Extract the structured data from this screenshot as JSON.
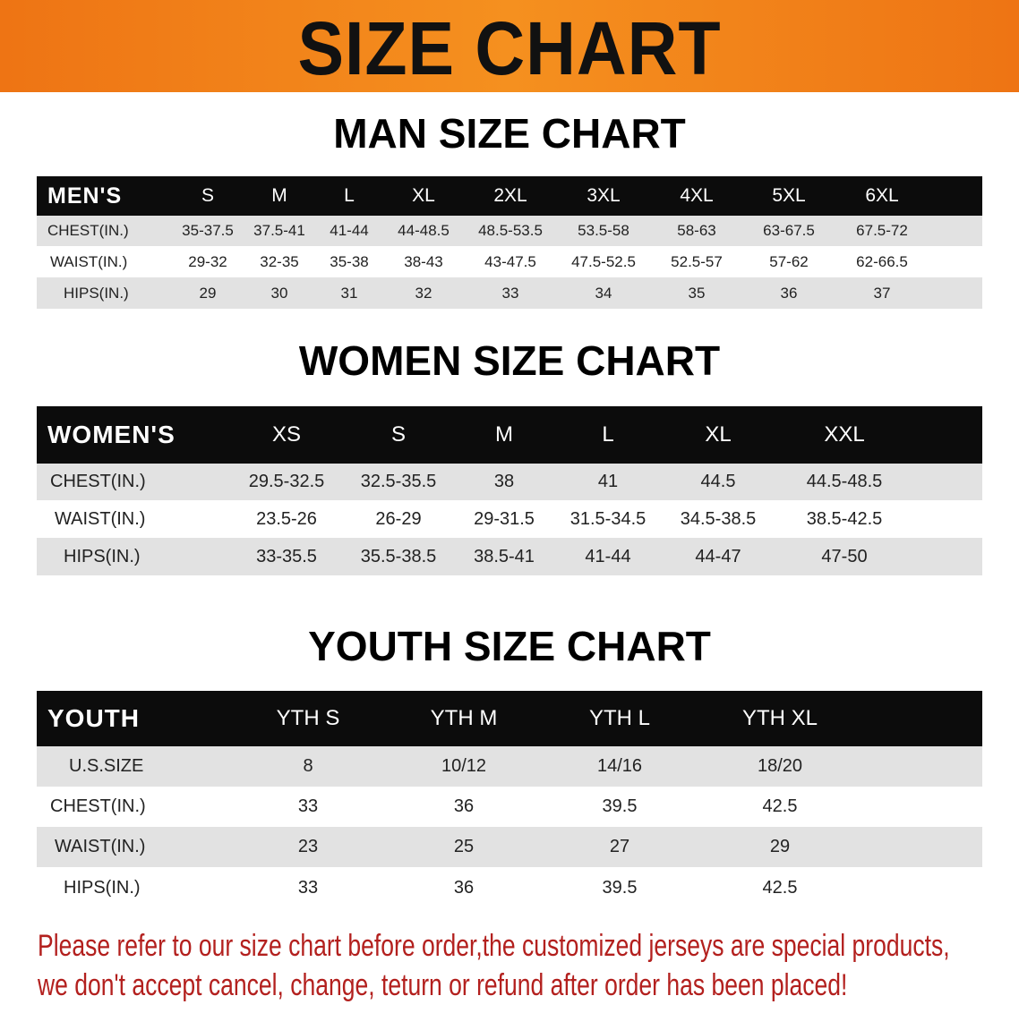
{
  "banner_title": "SIZE CHART",
  "men": {
    "title": "MAN SIZE CHART",
    "header": [
      "MEN'S",
      "S",
      "M",
      "L",
      "XL",
      "2XL",
      "3XL",
      "4XL",
      "5XL",
      "6XL"
    ],
    "rows": [
      [
        "CHEST(IN.)",
        "35-37.5",
        "37.5-41",
        "41-44",
        "44-48.5",
        "48.5-53.5",
        "53.5-58",
        "58-63",
        "63-67.5",
        "67.5-72"
      ],
      [
        "WAIST(IN.)",
        "29-32",
        "32-35",
        "35-38",
        "38-43",
        "43-47.5",
        "47.5-52.5",
        "52.5-57",
        "57-62",
        "62-66.5"
      ],
      [
        "HIPS(IN.)",
        "29",
        "30",
        "31",
        "32",
        "33",
        "34",
        "35",
        "36",
        "37"
      ]
    ]
  },
  "women": {
    "title": "WOMEN SIZE CHART",
    "header": [
      "WOMEN'S",
      "XS",
      "S",
      "M",
      "L",
      "XL",
      "XXL"
    ],
    "rows": [
      [
        "CHEST(IN.)",
        "29.5-32.5",
        "32.5-35.5",
        "38",
        "41",
        "44.5",
        "44.5-48.5"
      ],
      [
        "WAIST(IN.)",
        "23.5-26",
        "26-29",
        "29-31.5",
        "31.5-34.5",
        "34.5-38.5",
        "38.5-42.5"
      ],
      [
        "HIPS(IN.)",
        "33-35.5",
        "35.5-38.5",
        "38.5-41",
        "41-44",
        "44-47",
        "47-50"
      ]
    ]
  },
  "youth": {
    "title": "YOUTH SIZE CHART",
    "header": [
      "YOUTH",
      "YTH S",
      "YTH M",
      "YTH L",
      "YTH XL"
    ],
    "rows": [
      [
        "U.S.SIZE",
        "8",
        "10/12",
        "14/16",
        "18/20"
      ],
      [
        "CHEST(IN.)",
        "33",
        "36",
        "39.5",
        "42.5"
      ],
      [
        "WAIST(IN.)",
        "23",
        "25",
        "27",
        "29"
      ],
      [
        "HIPS(IN.)",
        "33",
        "36",
        "39.5",
        "42.5"
      ]
    ]
  },
  "notice": [
    "Please refer to our size chart before order,the customized jerseys are special products,",
    "we don't accept cancel, change, teturn or refund after order has been placed!"
  ],
  "colors": {
    "banner": "#f07f1a",
    "header_row": "#0c0c0c",
    "stripe": "#e2e2e2",
    "notice": "#b3201e"
  }
}
